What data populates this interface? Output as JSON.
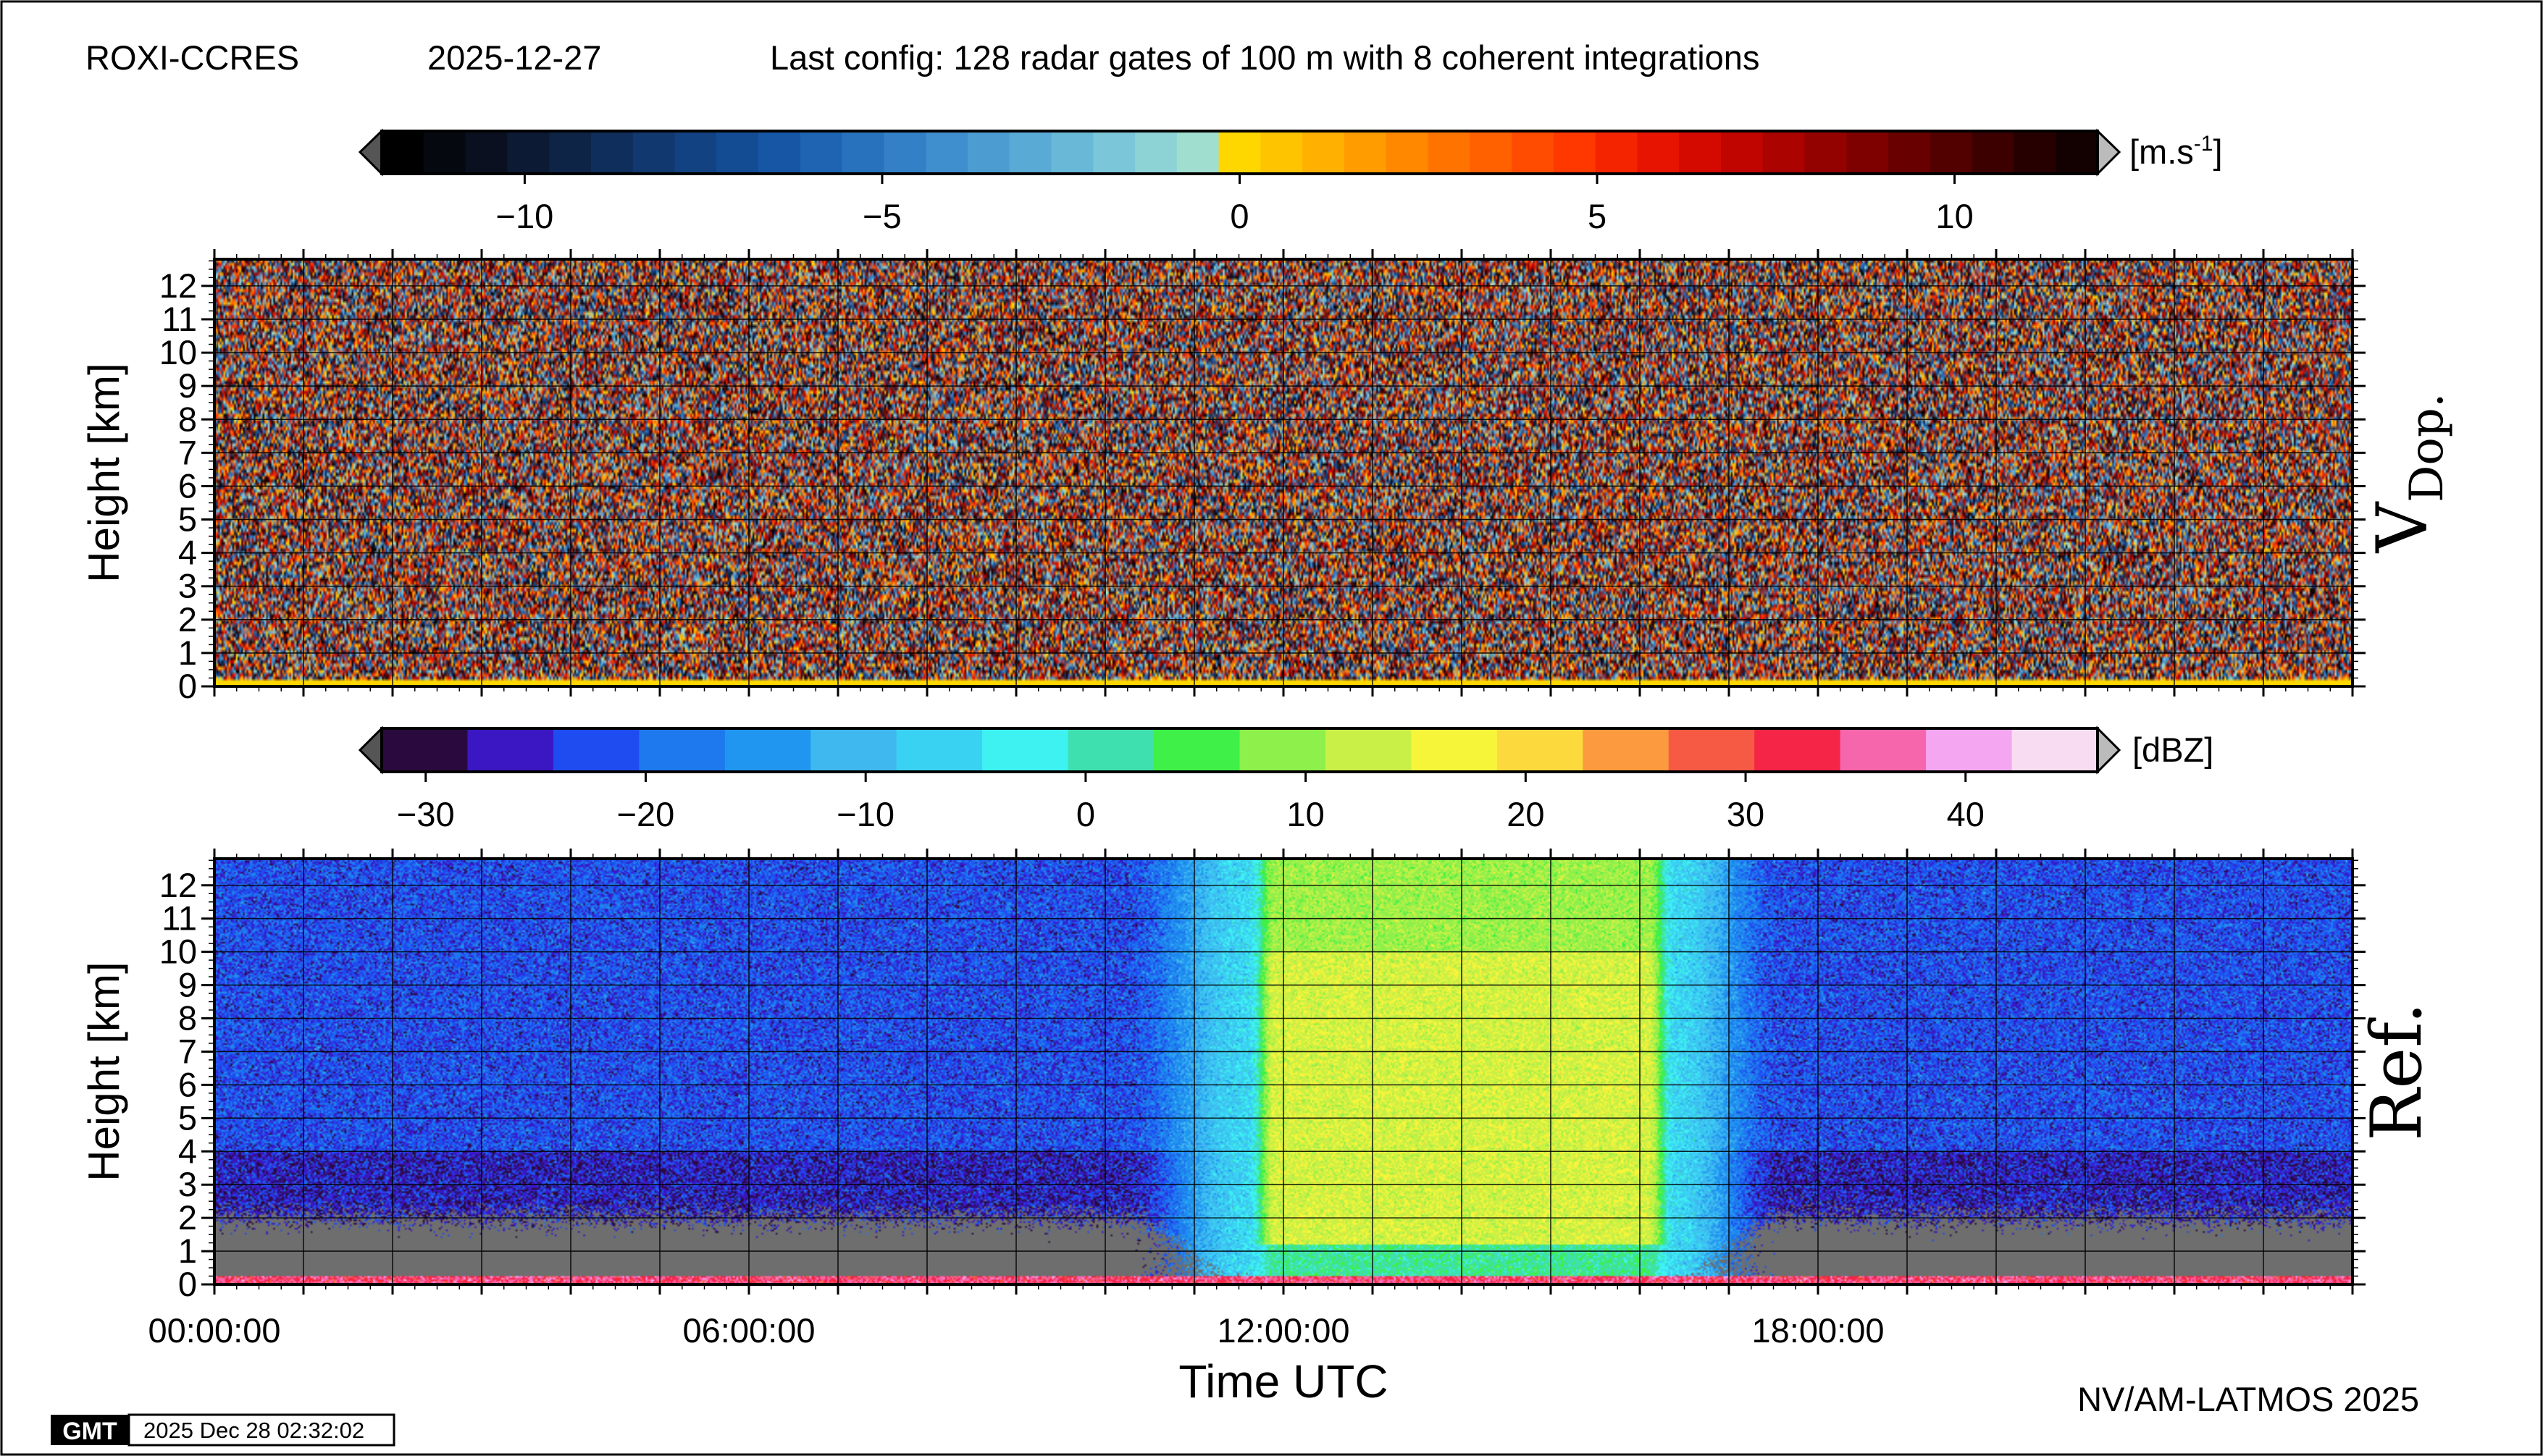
{
  "header": {
    "station": "ROXI-CCRES",
    "date": "2025-12-27",
    "config": "Last config: 128 radar gates of 100 m with 8 coherent integrations"
  },
  "footer": {
    "credit": "NV/AM-LATMOS 2025",
    "gmt_logo": "GMT",
    "timestamp": "2025 Dec 28 02:32:02"
  },
  "chart_data": [
    {
      "type": "heatmap",
      "panel_label": "V",
      "panel_label_sub": "Dop.",
      "ylabel": "Height [km]",
      "y_ticks": [
        "0",
        "1",
        "2",
        "3",
        "4",
        "5",
        "6",
        "7",
        "8",
        "9",
        "10",
        "11",
        "12"
      ],
      "ylim": [
        0,
        12.8
      ],
      "xlim_hours": [
        0,
        24
      ],
      "colorbar": {
        "unit": "[m.s",
        "unit_sup": "-1",
        "unit_close": "]",
        "range": [
          -12,
          12
        ],
        "ticks": [
          "−10",
          "−5",
          "0",
          "5",
          "10"
        ],
        "tick_values": [
          -10,
          -5,
          0,
          5,
          10
        ],
        "colors": [
          "#000000",
          "#05080f",
          "#0a1020",
          "#0c1a33",
          "#0e2447",
          "#0f2e5b",
          "#11386f",
          "#124282",
          "#144c94",
          "#1656a5",
          "#1e64b3",
          "#2872bd",
          "#3380c6",
          "#3f8ecd",
          "#4c9cd2",
          "#5aaad6",
          "#69b8d8",
          "#7bc6d8",
          "#8dd3d6",
          "#a0dfd0",
          "#ffd700",
          "#ffc400",
          "#ffb000",
          "#ff9c00",
          "#ff8800",
          "#ff7400",
          "#ff6000",
          "#ff4c00",
          "#ff3800",
          "#f52400",
          "#e61400",
          "#d40a00",
          "#c00500",
          "#aa0300",
          "#940200",
          "#7e0100",
          "#680000",
          "#520000",
          "#3c0000",
          "#260000",
          "#130000"
        ],
        "noise": "random Doppler velocity noise across all gates and times"
      }
    },
    {
      "type": "heatmap",
      "panel_label": "Ref.",
      "ylabel": "Height [km]",
      "xlabel": "Time UTC",
      "y_ticks": [
        "0",
        "1",
        "2",
        "3",
        "4",
        "5",
        "6",
        "7",
        "8",
        "9",
        "10",
        "11",
        "12"
      ],
      "x_ticks": [
        "00:00:00",
        "06:00:00",
        "12:00:00",
        "18:00:00"
      ],
      "x_tick_hours": [
        0,
        6,
        12,
        18
      ],
      "ylim": [
        0,
        12.8
      ],
      "xlim_hours": [
        0,
        24
      ],
      "colorbar": {
        "unit": "[dBZ]",
        "range": [
          -32,
          46
        ],
        "ticks": [
          "−30",
          "−20",
          "−10",
          "0",
          "10",
          "20",
          "30",
          "40"
        ],
        "tick_values": [
          -30,
          -20,
          -10,
          0,
          10,
          20,
          30,
          40
        ],
        "colors": [
          "#2a0a3e",
          "#3a17c2",
          "#1f4cf0",
          "#1e78ee",
          "#2196f0",
          "#3fb8f0",
          "#3ad2f2",
          "#3ef2f2",
          "#3fe0b0",
          "#3ef047",
          "#8ef04a",
          "#c8f046",
          "#f7f53a",
          "#fcd93c",
          "#fb9a3e",
          "#f65a44",
          "#f52547",
          "#f566ac",
          "#f5a6f0",
          "#f8ddf2"
        ],
        "features": {
          "background_dbz": -22,
          "precip_core_dbz": 14,
          "precip_start_hour": 11.6,
          "precip_end_hour": 16.4,
          "no_data_fill": "#6e6e6e",
          "surface_band_dbz": 34
        }
      }
    }
  ]
}
